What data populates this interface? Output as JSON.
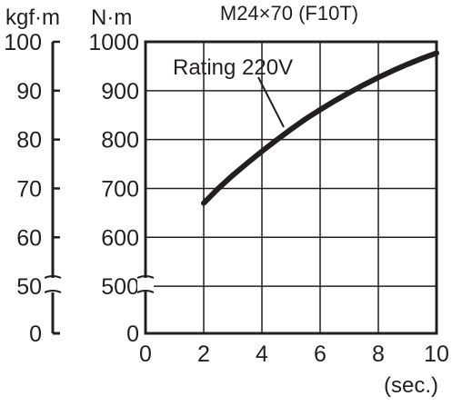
{
  "chart_data": {
    "type": "line",
    "title": "M24×70 (F10T)",
    "left_axis_unit": "kgf·m",
    "y_unit": "N·m",
    "x_unit": "(sec.)",
    "xlim": [
      0,
      10
    ],
    "ylim_broken": [
      450,
      1000
    ],
    "x_ticks": [
      "0",
      "2",
      "4",
      "6",
      "8",
      "10"
    ],
    "y_ticks": [
      "1000",
      "900",
      "800",
      "700",
      "600",
      "500",
      "0"
    ],
    "kgf_ticks": [
      "100",
      "90",
      "80",
      "70",
      "60",
      "50",
      "0"
    ],
    "grid": true,
    "series": [
      {
        "name": "Rating 220V",
        "x": [
          2,
          2.5,
          3,
          3.5,
          4,
          4.5,
          5,
          5.5,
          6,
          6.5,
          7,
          7.5,
          8,
          8.5,
          9,
          9.5,
          10
        ],
        "y": [
          670,
          700,
          727,
          752,
          776,
          799,
          821,
          842,
          861,
          879,
          896,
          912,
          927,
          941,
          954,
          966,
          977
        ]
      }
    ],
    "annotation": "Rating 220V"
  }
}
